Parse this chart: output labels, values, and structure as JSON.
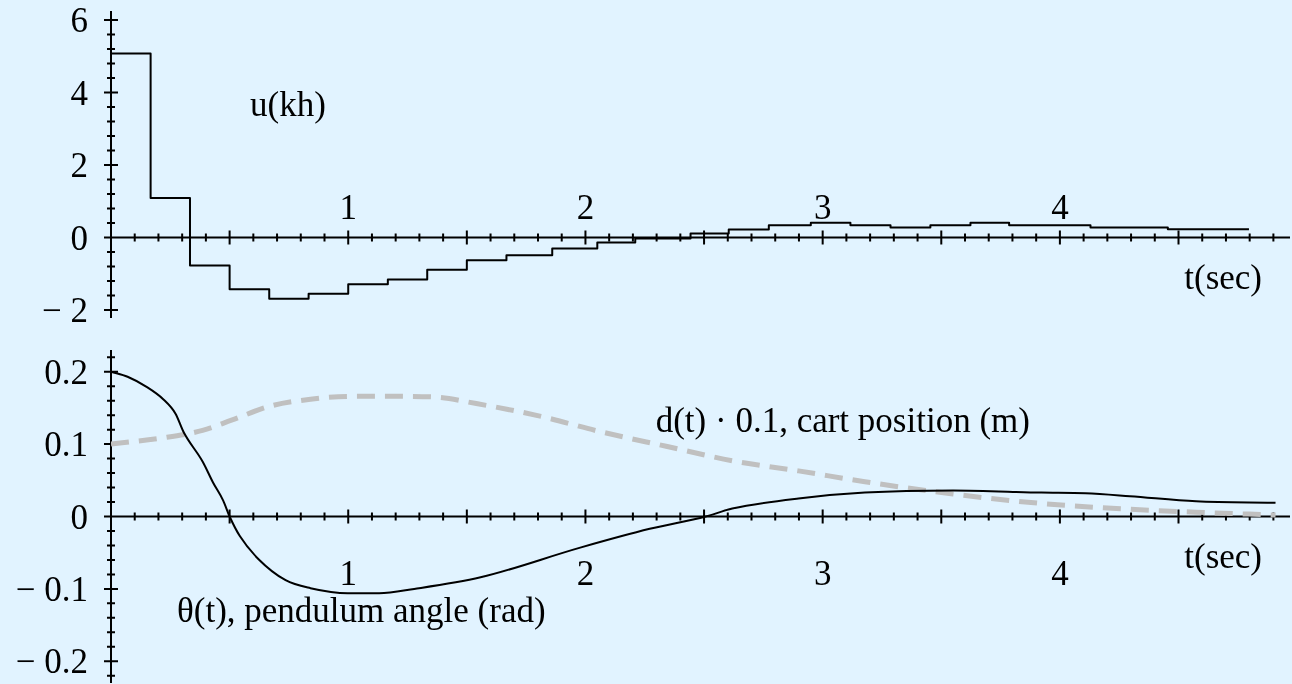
{
  "chart_data": [
    {
      "type": "step",
      "xlabel": "t(sec)",
      "xlim": [
        0,
        4.97
      ],
      "ylim": [
        -2.22,
        6.25
      ],
      "x": [
        0,
        0.167,
        0.333,
        0.5,
        0.667,
        0.833,
        1,
        1.167,
        1.333,
        1.5,
        1.667,
        1.86,
        2.05,
        2.21,
        2.443,
        2.604,
        2.773,
        2.95,
        3.117,
        3.286,
        3.454,
        3.623,
        3.786,
        3.962,
        4.129,
        4.297,
        4.455,
        4.622,
        4.797
      ],
      "series": [
        {
          "name": "u(kh)",
          "color": "#000000",
          "values": [
            5.08,
            1.09,
            -0.77,
            -1.43,
            -1.69,
            -1.55,
            -1.29,
            -1.16,
            -0.89,
            -0.63,
            -0.49,
            -0.3,
            -0.14,
            -0.03,
            0.11,
            0.22,
            0.34,
            0.41,
            0.34,
            0.28,
            0.34,
            0.41,
            0.34,
            0.34,
            0.28,
            0.28,
            0.23,
            0.23,
            0.23
          ]
        }
      ],
      "xticks": [
        {
          "value": 0.1,
          "label": null
        },
        {
          "value": 0.2,
          "label": null
        },
        {
          "value": 0.3,
          "label": null
        },
        {
          "value": 0.4,
          "label": null
        },
        {
          "value": 0.5,
          "label": null
        },
        {
          "value": 0.6,
          "label": null
        },
        {
          "value": 0.7,
          "label": null
        },
        {
          "value": 0.8,
          "label": null
        },
        {
          "value": 0.9,
          "label": null
        },
        1,
        {
          "value": 1.1,
          "label": null
        },
        {
          "value": 1.2,
          "label": null
        },
        {
          "value": 1.3,
          "label": null
        },
        {
          "value": 1.4,
          "label": null
        },
        {
          "value": 1.5,
          "label": null
        },
        {
          "value": 1.6,
          "label": null
        },
        {
          "value": 1.7,
          "label": null
        },
        {
          "value": 1.8,
          "label": null
        },
        {
          "value": 1.9,
          "label": null
        },
        2,
        {
          "value": 2.1,
          "label": null
        },
        {
          "value": 2.2,
          "label": null
        },
        {
          "value": 2.3,
          "label": null
        },
        {
          "value": 2.4,
          "label": null
        },
        {
          "value": 2.5,
          "label": null
        },
        {
          "value": 2.6,
          "label": null
        },
        {
          "value": 2.7,
          "label": null
        },
        {
          "value": 2.8,
          "label": null
        },
        {
          "value": 2.9,
          "label": null
        },
        3,
        {
          "value": 3.1,
          "label": null
        },
        {
          "value": 3.2,
          "label": null
        },
        {
          "value": 3.3,
          "label": null
        },
        {
          "value": 3.4,
          "label": null
        },
        {
          "value": 3.5,
          "label": null
        },
        {
          "value": 3.6,
          "label": null
        },
        {
          "value": 3.7,
          "label": null
        },
        {
          "value": 3.8,
          "label": null
        },
        {
          "value": 3.9,
          "label": null
        },
        4,
        {
          "value": 4.1,
          "label": null
        },
        {
          "value": 4.2,
          "label": null
        },
        {
          "value": 4.3,
          "label": null
        },
        {
          "value": 4.4,
          "label": null
        },
        {
          "value": 4.5,
          "label": null
        },
        {
          "value": 4.6,
          "label": null
        },
        {
          "value": 4.7,
          "label": null
        },
        {
          "value": 4.8,
          "label": null
        },
        {
          "value": 4.9,
          "label": null
        }
      ],
      "yticks": [
        {
          "value": -2,
          "label": "− 2"
        },
        {
          "value": -1.6,
          "label": null
        },
        {
          "value": -1.2,
          "label": null
        },
        {
          "value": -0.8,
          "label": null
        },
        {
          "value": -0.4,
          "label": null
        },
        0,
        {
          "value": 0.4,
          "label": null
        },
        {
          "value": 0.8,
          "label": null
        },
        {
          "value": 1.2,
          "label": null
        },
        {
          "value": 1.6,
          "label": null
        },
        2,
        {
          "value": 2.4,
          "label": null
        },
        {
          "value": 2.8,
          "label": null
        },
        {
          "value": 3.2,
          "label": null
        },
        {
          "value": 3.6,
          "label": null
        },
        4,
        {
          "value": 4.4,
          "label": null
        },
        {
          "value": 4.8,
          "label": null
        },
        {
          "value": 5.2,
          "label": null
        },
        {
          "value": 5.6,
          "label": null
        },
        6
      ]
    },
    {
      "type": "line",
      "xlabel": "t(sec)",
      "xlim": [
        0,
        4.97
      ],
      "ylim": [
        -0.23,
        0.23
      ],
      "series": [
        {
          "name": "θ(t), pendulum angle (rad)",
          "color": "#000000",
          "x": [
            0,
            0.07,
            0.15,
            0.22,
            0.272,
            0.307,
            0.386,
            0.43,
            0.473,
            0.5,
            0.543,
            0.622,
            0.736,
            0.841,
            0.998,
            1.13,
            1.278,
            1.558,
            1.978,
            2.271,
            2.507,
            2.619,
            2.898,
            3.178,
            3.55,
            3.922,
            4.108,
            4.295,
            4.574,
            4.909
          ],
          "values": [
            0.2,
            0.193,
            0.179,
            0.162,
            0.142,
            0.116,
            0.076,
            0.047,
            0.022,
            0,
            -0.027,
            -0.059,
            -0.088,
            -0.099,
            -0.106,
            -0.106,
            -0.1,
            -0.084,
            -0.043,
            -0.017,
            0,
            0.011,
            0.025,
            0.033,
            0.036,
            0.033,
            0.032,
            0.028,
            0.021,
            0.019
          ]
        },
        {
          "name": "d(t) · 0.1, cart position (m)",
          "color": "#c0c0c0",
          "line_style": "dashed",
          "x": [
            0,
            0.228,
            0.386,
            0.508,
            0.666,
            0.841,
            1.016,
            1.19,
            1.365,
            1.54,
            1.803,
            2.065,
            2.34,
            2.619,
            2.898,
            3.178,
            3.55,
            3.922,
            4.295,
            4.574,
            4.909
          ],
          "values": [
            0.1,
            0.109,
            0.119,
            0.133,
            0.152,
            0.162,
            0.166,
            0.166,
            0.165,
            0.156,
            0.139,
            0.117,
            0.097,
            0.077,
            0.063,
            0.048,
            0.031,
            0.018,
            0.01,
            0.006,
            0.002
          ]
        }
      ],
      "xticks": [
        {
          "value": 0.1,
          "label": null
        },
        {
          "value": 0.2,
          "label": null
        },
        {
          "value": 0.3,
          "label": null
        },
        {
          "value": 0.4,
          "label": null
        },
        {
          "value": 0.5,
          "label": null
        },
        {
          "value": 0.6,
          "label": null
        },
        {
          "value": 0.7,
          "label": null
        },
        {
          "value": 0.8,
          "label": null
        },
        {
          "value": 0.9,
          "label": null
        },
        1,
        {
          "value": 1.1,
          "label": null
        },
        {
          "value": 1.2,
          "label": null
        },
        {
          "value": 1.3,
          "label": null
        },
        {
          "value": 1.4,
          "label": null
        },
        {
          "value": 1.5,
          "label": null
        },
        {
          "value": 1.6,
          "label": null
        },
        {
          "value": 1.7,
          "label": null
        },
        {
          "value": 1.8,
          "label": null
        },
        {
          "value": 1.9,
          "label": null
        },
        2,
        {
          "value": 2.1,
          "label": null
        },
        {
          "value": 2.2,
          "label": null
        },
        {
          "value": 2.3,
          "label": null
        },
        {
          "value": 2.4,
          "label": null
        },
        {
          "value": 2.5,
          "label": null
        },
        {
          "value": 2.6,
          "label": null
        },
        {
          "value": 2.7,
          "label": null
        },
        {
          "value": 2.8,
          "label": null
        },
        {
          "value": 2.9,
          "label": null
        },
        3,
        {
          "value": 3.1,
          "label": null
        },
        {
          "value": 3.2,
          "label": null
        },
        {
          "value": 3.3,
          "label": null
        },
        {
          "value": 3.4,
          "label": null
        },
        {
          "value": 3.5,
          "label": null
        },
        {
          "value": 3.6,
          "label": null
        },
        {
          "value": 3.7,
          "label": null
        },
        {
          "value": 3.8,
          "label": null
        },
        {
          "value": 3.9,
          "label": null
        },
        4,
        {
          "value": 4.1,
          "label": null
        },
        {
          "value": 4.2,
          "label": null
        },
        {
          "value": 4.3,
          "label": null
        },
        {
          "value": 4.4,
          "label": null
        },
        {
          "value": 4.5,
          "label": null
        },
        {
          "value": 4.6,
          "label": null
        },
        {
          "value": 4.7,
          "label": null
        },
        {
          "value": 4.8,
          "label": null
        },
        {
          "value": 4.9,
          "label": null
        }
      ],
      "yticks": [
        {
          "value": -0.22,
          "label": null
        },
        {
          "value": -0.2,
          "label": "− 0.2"
        },
        {
          "value": -0.18,
          "label": null
        },
        {
          "value": -0.16,
          "label": null
        },
        {
          "value": -0.14,
          "label": null
        },
        {
          "value": -0.12,
          "label": null
        },
        {
          "value": -0.1,
          "label": "− 0.1"
        },
        {
          "value": -0.08,
          "label": null
        },
        {
          "value": -0.06,
          "label": null
        },
        {
          "value": -0.04,
          "label": null
        },
        {
          "value": -0.02,
          "label": null
        },
        0,
        {
          "value": 0.02,
          "label": null
        },
        {
          "value": 0.04,
          "label": null
        },
        {
          "value": 0.06,
          "label": null
        },
        {
          "value": 0.08,
          "label": null
        },
        0.1,
        {
          "value": 0.12,
          "label": null
        },
        {
          "value": 0.14,
          "label": null
        },
        {
          "value": 0.16,
          "label": null
        },
        {
          "value": 0.18,
          "label": null
        },
        0.2,
        {
          "value": 0.22,
          "label": null
        }
      ]
    }
  ]
}
